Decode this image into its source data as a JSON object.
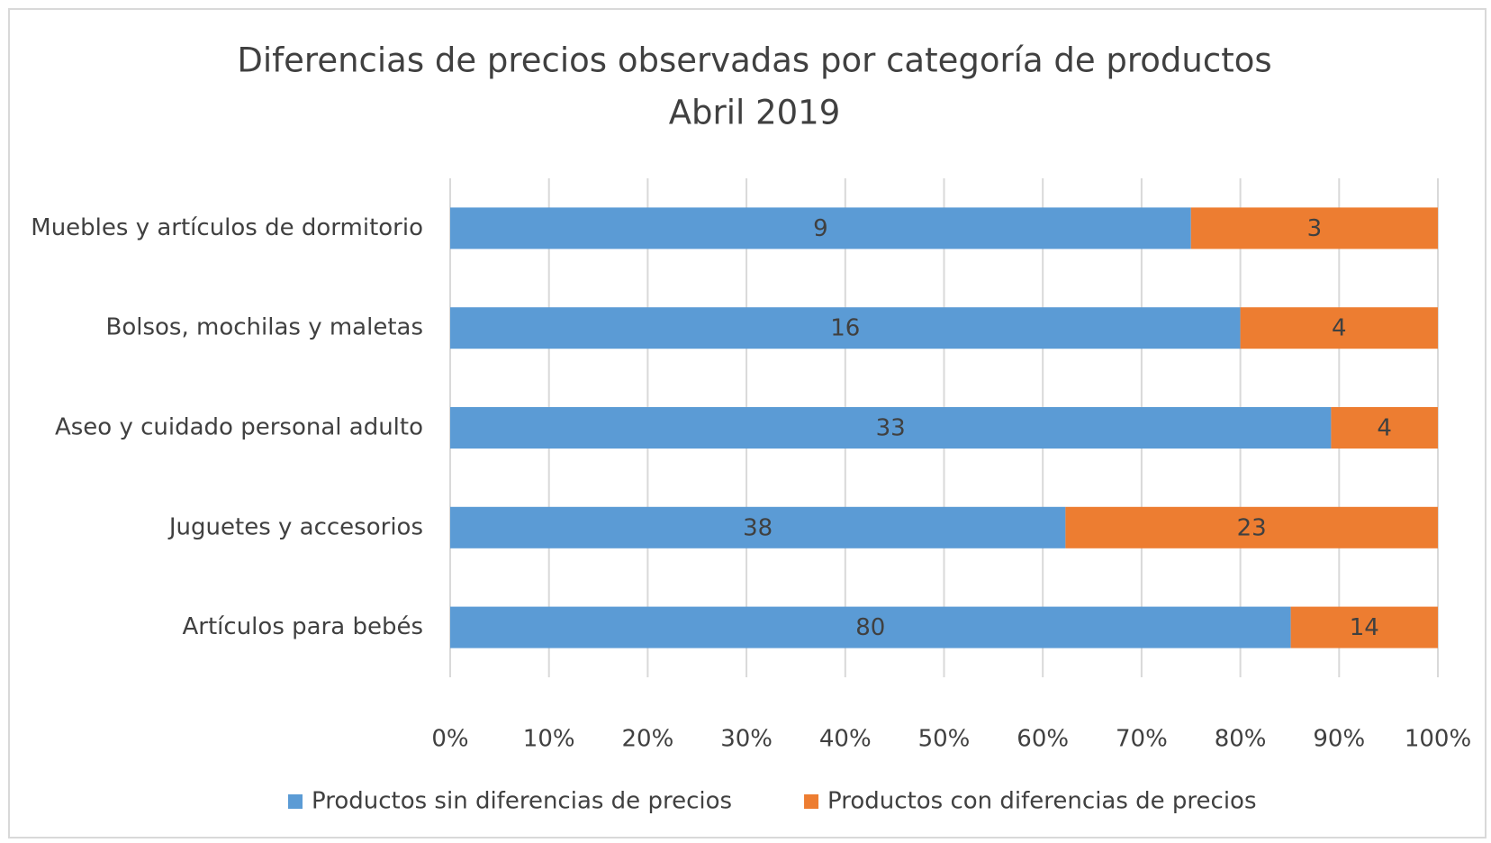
{
  "chart_data": {
    "type": "bar",
    "orientation": "horizontal",
    "stacking": "percent",
    "title": "Diferencias de precios observadas por categoría de productos",
    "subtitle": "Abril 2019",
    "categories": [
      "Muebles y artículos de dormitorio",
      "Bolsos, mochilas y maletas",
      "Aseo y cuidado personal adulto",
      "Juguetes y accesorios",
      "Artículos para bebés"
    ],
    "series": [
      {
        "name": "Productos sin diferencias de precios",
        "color": "#5b9bd5",
        "values": [
          9,
          16,
          33,
          38,
          80
        ]
      },
      {
        "name": "Productos con diferencias de precios",
        "color": "#ed7d31",
        "values": [
          3,
          4,
          4,
          23,
          14
        ]
      }
    ],
    "xlim": [
      0,
      100
    ],
    "xticks": [
      {
        "value": 0,
        "label": "0%"
      },
      {
        "value": 10,
        "label": "10%"
      },
      {
        "value": 20,
        "label": "20%"
      },
      {
        "value": 30,
        "label": "30%"
      },
      {
        "value": 40,
        "label": "40%"
      },
      {
        "value": 50,
        "label": "50%"
      },
      {
        "value": 60,
        "label": "60%"
      },
      {
        "value": 70,
        "label": "70%"
      },
      {
        "value": 80,
        "label": "80%"
      },
      {
        "value": 90,
        "label": "90%"
      },
      {
        "value": 100,
        "label": "100%"
      }
    ],
    "grid": true,
    "legend": "bottom"
  }
}
